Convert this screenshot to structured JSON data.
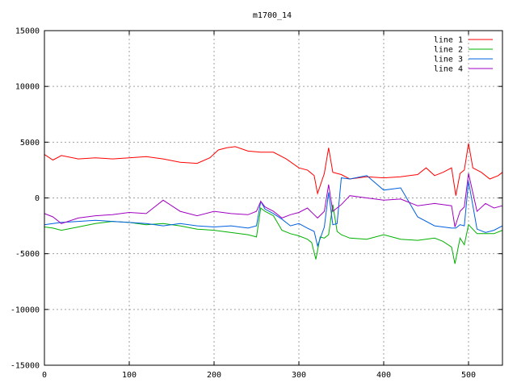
{
  "chart_data": {
    "type": "line",
    "title": "m1700_14",
    "xlabel": "",
    "ylabel": "",
    "xlim": [
      0,
      540
    ],
    "ylim": [
      -15000,
      15000
    ],
    "xticks": [
      0,
      100,
      200,
      300,
      400,
      500
    ],
    "yticks": [
      -15000,
      -10000,
      -5000,
      0,
      5000,
      10000,
      15000
    ],
    "grid": true,
    "legend_position": "top-right",
    "series": [
      {
        "name": "line 1",
        "color": "#ff0000",
        "x": [
          0,
          10,
          20,
          40,
          60,
          80,
          100,
          120,
          140,
          160,
          180,
          195,
          205,
          215,
          225,
          240,
          255,
          270,
          285,
          300,
          310,
          318,
          322,
          330,
          335,
          340,
          350,
          360,
          380,
          400,
          420,
          440,
          450,
          460,
          470,
          480,
          485,
          490,
          495,
          500,
          505,
          515,
          525,
          535,
          540
        ],
        "y": [
          3900,
          3400,
          3800,
          3500,
          3600,
          3500,
          3600,
          3700,
          3500,
          3200,
          3100,
          3600,
          4300,
          4500,
          4600,
          4200,
          4100,
          4100,
          3500,
          2700,
          2500,
          2000,
          400,
          2200,
          4500,
          2300,
          2100,
          1700,
          1900,
          1800,
          1900,
          2100,
          2700,
          2000,
          2300,
          2700,
          200,
          2200,
          2500,
          4900,
          2700,
          2300,
          1700,
          2000,
          2300
        ]
      },
      {
        "name": "line 2",
        "color": "#00b000",
        "x": [
          0,
          10,
          20,
          40,
          60,
          80,
          100,
          120,
          140,
          160,
          180,
          200,
          220,
          240,
          250,
          255,
          260,
          270,
          280,
          290,
          300,
          310,
          315,
          320,
          325,
          330,
          335,
          340,
          345,
          350,
          360,
          380,
          400,
          420,
          440,
          460,
          470,
          480,
          484,
          490,
          495,
          500,
          510,
          520,
          530,
          540
        ],
        "y": [
          -2600,
          -2700,
          -2900,
          -2600,
          -2300,
          -2100,
          -2200,
          -2400,
          -2300,
          -2500,
          -2800,
          -2900,
          -3100,
          -3300,
          -3500,
          -900,
          -1200,
          -1600,
          -2900,
          -3200,
          -3400,
          -3700,
          -4000,
          -5500,
          -3500,
          -3600,
          -3300,
          -600,
          -3000,
          -3300,
          -3600,
          -3700,
          -3300,
          -3700,
          -3800,
          -3600,
          -3900,
          -4400,
          -5900,
          -3600,
          -4200,
          -2400,
          -3200,
          -3200,
          -3200,
          -2900
        ]
      },
      {
        "name": "line 3",
        "color": "#0060e0",
        "x": [
          0,
          10,
          20,
          40,
          60,
          80,
          100,
          120,
          140,
          160,
          180,
          200,
          220,
          240,
          250,
          255,
          260,
          270,
          280,
          290,
          300,
          310,
          318,
          322,
          330,
          335,
          340,
          345,
          350,
          360,
          380,
          400,
          420,
          440,
          460,
          480,
          485,
          490,
          495,
          500,
          510,
          520,
          530,
          540
        ],
        "y": [
          -2400,
          -2300,
          -2200,
          -2100,
          -2000,
          -2100,
          -2200,
          -2300,
          -2500,
          -2300,
          -2500,
          -2600,
          -2500,
          -2700,
          -2500,
          -300,
          -1000,
          -1400,
          -1900,
          -2500,
          -2300,
          -2700,
          -3000,
          -4300,
          -2600,
          500,
          -2400,
          -2300,
          1800,
          1700,
          2000,
          700,
          900,
          -1700,
          -2500,
          -2700,
          -2700,
          -2400,
          -2500,
          1500,
          -2800,
          -3100,
          -2900,
          -2500
        ]
      },
      {
        "name": "line 4",
        "color": "#a000c0",
        "x": [
          0,
          10,
          20,
          40,
          60,
          80,
          100,
          120,
          140,
          160,
          180,
          200,
          220,
          240,
          250,
          255,
          260,
          270,
          280,
          290,
          300,
          310,
          318,
          322,
          330,
          335,
          340,
          350,
          360,
          380,
          400,
          420,
          440,
          460,
          480,
          484,
          490,
          495,
          500,
          510,
          520,
          530,
          540
        ],
        "y": [
          -1400,
          -1700,
          -2300,
          -1800,
          -1600,
          -1500,
          -1300,
          -1400,
          -200,
          -1200,
          -1600,
          -1200,
          -1400,
          -1500,
          -1200,
          -300,
          -800,
          -1200,
          -1800,
          -1500,
          -1300,
          -900,
          -1500,
          -1800,
          -1200,
          1200,
          -1200,
          -600,
          200,
          0,
          -200,
          -100,
          -700,
          -500,
          -700,
          -2600,
          -1200,
          -800,
          2200,
          -1200,
          -500,
          -900,
          -700
        ]
      }
    ]
  }
}
